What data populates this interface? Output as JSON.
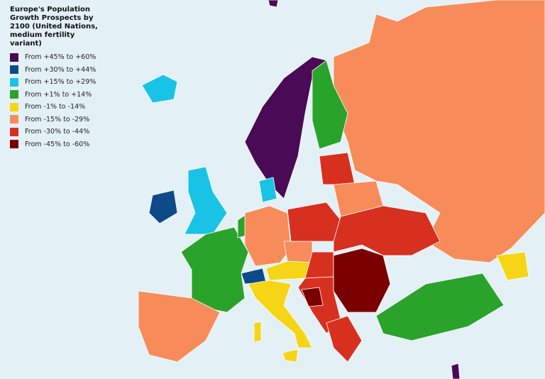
{
  "title": "Europe's Population Growth Prospects by 2100 (United Nations, medium fertility variant)",
  "legend": {
    "items": [
      {
        "label": "From +45% to +60%",
        "color": "#4b0a55"
      },
      {
        "label": "From +30% to +44%",
        "color": "#0d4a8a"
      },
      {
        "label": "From +15% to +29%",
        "color": "#19c3e6"
      },
      {
        "label": "From +1% to +14%",
        "color": "#2aa32a"
      },
      {
        "label": "From -1% to -14%",
        "color": "#f5d516"
      },
      {
        "label": "From -15% to -29%",
        "color": "#f78c5a"
      },
      {
        "label": "From -30% to -44%",
        "color": "#d8301f"
      },
      {
        "label": "From -45% to -60%",
        "color": "#7a0000"
      }
    ]
  }
}
